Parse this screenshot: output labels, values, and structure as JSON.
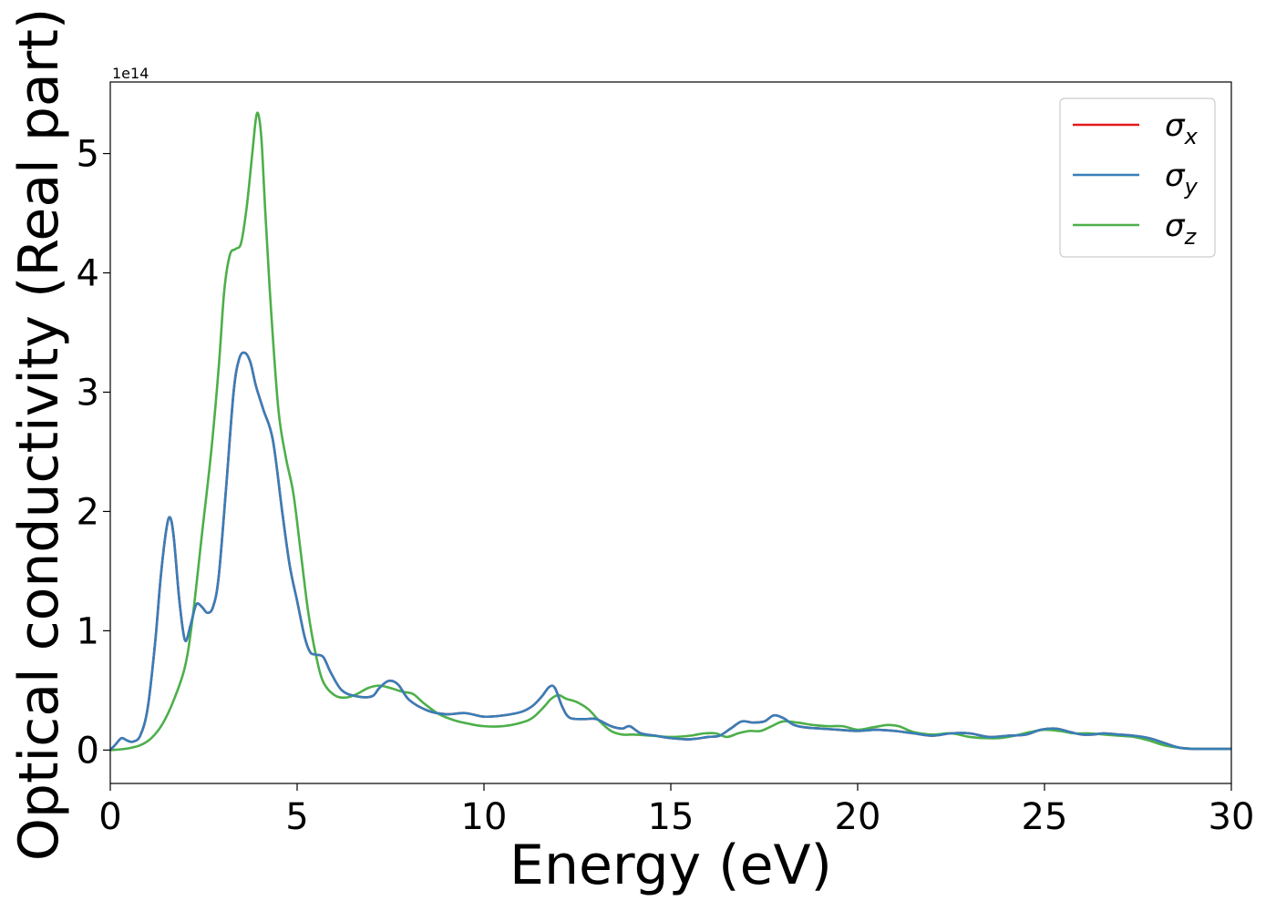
{
  "chart_data": {
    "type": "line",
    "xlabel": "Energy (eV)",
    "ylabel": "Optical conductivity (Real part)",
    "y_scale_label": "1e14",
    "xlim": [
      0,
      30
    ],
    "ylim": [
      -0.28,
      5.6
    ],
    "y_multiplier": 100000000000000.0,
    "x_ticks": [
      0,
      5,
      10,
      15,
      20,
      25,
      30
    ],
    "y_ticks": [
      0,
      1,
      2,
      3,
      4,
      5
    ],
    "grid": false,
    "legend_position": "top-right",
    "series": [
      {
        "name": "σx",
        "symbol": "σ",
        "subscript": "x",
        "color": "#e41a1c",
        "x": [
          0,
          0.15,
          0.3,
          0.45,
          0.6,
          0.8,
          1.0,
          1.2,
          1.35,
          1.5,
          1.6,
          1.7,
          1.85,
          2.0,
          2.15,
          2.3,
          2.45,
          2.6,
          2.75,
          2.9,
          3.1,
          3.3,
          3.45,
          3.6,
          3.75,
          3.9,
          4.1,
          4.35,
          4.6,
          4.8,
          5.0,
          5.2,
          5.35,
          5.5,
          5.7,
          5.9,
          6.2,
          6.6,
          7.0,
          7.2,
          7.45,
          7.7,
          8.0,
          8.5,
          9.0,
          9.5,
          10.0,
          10.5,
          11.0,
          11.3,
          11.55,
          11.75,
          11.9,
          12.1,
          12.3,
          12.7,
          13.0,
          13.4,
          13.7,
          13.9,
          14.2,
          14.6,
          15.0,
          15.5,
          16.0,
          16.3,
          16.6,
          16.9,
          17.2,
          17.5,
          17.75,
          18.0,
          18.3,
          18.6,
          19.0,
          19.5,
          20.0,
          20.5,
          21.0,
          21.5,
          22.0,
          22.5,
          23.0,
          23.5,
          24.0,
          24.5,
          24.9,
          25.3,
          25.7,
          26.0,
          26.3,
          26.6,
          27.0,
          27.4,
          27.8,
          28.2,
          28.6,
          29.0,
          29.5,
          30.0
        ],
        "y": [
          0.0,
          0.05,
          0.1,
          0.08,
          0.07,
          0.12,
          0.35,
          0.9,
          1.45,
          1.85,
          1.95,
          1.78,
          1.25,
          0.92,
          1.05,
          1.22,
          1.2,
          1.15,
          1.2,
          1.45,
          2.2,
          3.0,
          3.28,
          3.33,
          3.25,
          3.05,
          2.85,
          2.6,
          2.0,
          1.55,
          1.25,
          0.95,
          0.82,
          0.8,
          0.78,
          0.65,
          0.5,
          0.45,
          0.45,
          0.52,
          0.58,
          0.55,
          0.42,
          0.33,
          0.3,
          0.31,
          0.28,
          0.29,
          0.32,
          0.37,
          0.45,
          0.53,
          0.52,
          0.36,
          0.27,
          0.26,
          0.26,
          0.2,
          0.18,
          0.2,
          0.14,
          0.12,
          0.1,
          0.09,
          0.11,
          0.12,
          0.18,
          0.24,
          0.23,
          0.24,
          0.29,
          0.27,
          0.21,
          0.19,
          0.18,
          0.17,
          0.16,
          0.17,
          0.16,
          0.14,
          0.12,
          0.14,
          0.14,
          0.11,
          0.12,
          0.13,
          0.17,
          0.18,
          0.15,
          0.13,
          0.13,
          0.14,
          0.13,
          0.12,
          0.1,
          0.06,
          0.02,
          0.01,
          0.01,
          0.01
        ]
      },
      {
        "name": "σy",
        "symbol": "σ",
        "subscript": "y",
        "color": "#377eb8",
        "x": [
          0,
          0.15,
          0.3,
          0.45,
          0.6,
          0.8,
          1.0,
          1.2,
          1.35,
          1.5,
          1.6,
          1.7,
          1.85,
          2.0,
          2.15,
          2.3,
          2.45,
          2.6,
          2.75,
          2.9,
          3.1,
          3.3,
          3.45,
          3.6,
          3.75,
          3.9,
          4.1,
          4.35,
          4.6,
          4.8,
          5.0,
          5.2,
          5.35,
          5.5,
          5.7,
          5.9,
          6.2,
          6.6,
          7.0,
          7.2,
          7.45,
          7.7,
          8.0,
          8.5,
          9.0,
          9.5,
          10.0,
          10.5,
          11.0,
          11.3,
          11.55,
          11.75,
          11.9,
          12.1,
          12.3,
          12.7,
          13.0,
          13.4,
          13.7,
          13.9,
          14.2,
          14.6,
          15.0,
          15.5,
          16.0,
          16.3,
          16.6,
          16.9,
          17.2,
          17.5,
          17.75,
          18.0,
          18.3,
          18.6,
          19.0,
          19.5,
          20.0,
          20.5,
          21.0,
          21.5,
          22.0,
          22.5,
          23.0,
          23.5,
          24.0,
          24.5,
          24.9,
          25.3,
          25.7,
          26.0,
          26.3,
          26.6,
          27.0,
          27.4,
          27.8,
          28.2,
          28.6,
          29.0,
          29.5,
          30.0
        ],
        "y": [
          0.0,
          0.05,
          0.1,
          0.08,
          0.07,
          0.12,
          0.35,
          0.9,
          1.45,
          1.85,
          1.95,
          1.78,
          1.25,
          0.92,
          1.05,
          1.22,
          1.2,
          1.15,
          1.2,
          1.45,
          2.2,
          3.0,
          3.28,
          3.33,
          3.25,
          3.05,
          2.85,
          2.6,
          2.0,
          1.55,
          1.25,
          0.95,
          0.82,
          0.8,
          0.78,
          0.65,
          0.5,
          0.45,
          0.45,
          0.52,
          0.58,
          0.55,
          0.42,
          0.33,
          0.3,
          0.31,
          0.28,
          0.29,
          0.32,
          0.37,
          0.45,
          0.53,
          0.52,
          0.36,
          0.27,
          0.26,
          0.26,
          0.2,
          0.18,
          0.2,
          0.14,
          0.12,
          0.1,
          0.09,
          0.11,
          0.12,
          0.18,
          0.24,
          0.23,
          0.24,
          0.29,
          0.27,
          0.21,
          0.19,
          0.18,
          0.17,
          0.16,
          0.17,
          0.16,
          0.14,
          0.12,
          0.14,
          0.14,
          0.11,
          0.12,
          0.13,
          0.17,
          0.18,
          0.15,
          0.13,
          0.13,
          0.14,
          0.13,
          0.12,
          0.1,
          0.06,
          0.02,
          0.01,
          0.01,
          0.01
        ]
      },
      {
        "name": "σz",
        "symbol": "σ",
        "subscript": "z",
        "color": "#4daf4a",
        "x": [
          0,
          0.4,
          0.8,
          1.1,
          1.4,
          1.7,
          2.0,
          2.2,
          2.45,
          2.7,
          2.9,
          3.05,
          3.2,
          3.35,
          3.5,
          3.65,
          3.8,
          3.9,
          3.97,
          4.05,
          4.15,
          4.3,
          4.5,
          4.7,
          4.9,
          5.1,
          5.3,
          5.5,
          5.7,
          6.0,
          6.3,
          6.6,
          6.9,
          7.2,
          7.5,
          7.8,
          8.1,
          8.4,
          8.8,
          9.2,
          9.6,
          10.0,
          10.5,
          11.0,
          11.3,
          11.6,
          11.8,
          12.0,
          12.2,
          12.5,
          12.8,
          13.1,
          13.4,
          13.7,
          14.0,
          14.5,
          15.0,
          15.5,
          15.9,
          16.2,
          16.5,
          16.8,
          17.1,
          17.4,
          17.7,
          18.0,
          18.4,
          18.8,
          19.2,
          19.6,
          20.0,
          20.4,
          20.8,
          21.1,
          21.5,
          22.0,
          22.5,
          23.0,
          23.4,
          23.8,
          24.2,
          24.6,
          25.0,
          25.4,
          25.8,
          26.2,
          26.6,
          27.0,
          27.4,
          27.8,
          28.2,
          28.6,
          29.0,
          29.5,
          30.0
        ],
        "y": [
          0.0,
          0.01,
          0.04,
          0.1,
          0.22,
          0.42,
          0.7,
          1.1,
          1.8,
          2.5,
          3.2,
          3.85,
          4.15,
          4.2,
          4.25,
          4.55,
          5.0,
          5.3,
          5.32,
          5.1,
          4.5,
          3.7,
          2.85,
          2.45,
          2.15,
          1.65,
          1.15,
          0.8,
          0.57,
          0.46,
          0.44,
          0.47,
          0.52,
          0.54,
          0.52,
          0.49,
          0.47,
          0.39,
          0.3,
          0.25,
          0.22,
          0.2,
          0.2,
          0.23,
          0.27,
          0.36,
          0.43,
          0.46,
          0.43,
          0.4,
          0.34,
          0.24,
          0.16,
          0.13,
          0.13,
          0.12,
          0.11,
          0.12,
          0.14,
          0.14,
          0.11,
          0.14,
          0.16,
          0.16,
          0.2,
          0.24,
          0.23,
          0.21,
          0.2,
          0.2,
          0.17,
          0.19,
          0.21,
          0.2,
          0.15,
          0.13,
          0.14,
          0.11,
          0.1,
          0.1,
          0.12,
          0.15,
          0.17,
          0.16,
          0.14,
          0.14,
          0.13,
          0.12,
          0.11,
          0.08,
          0.04,
          0.02,
          0.01,
          0.01,
          0.01
        ]
      }
    ]
  }
}
